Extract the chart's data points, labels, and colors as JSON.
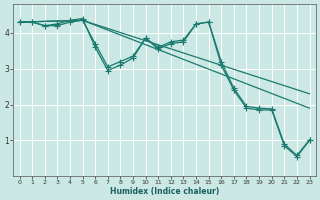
{
  "xlabel": "Humidex (Indice chaleur)",
  "bg_color": "#cce8e5",
  "line_color": "#1a7a6e",
  "grid_color": "#ffffff",
  "xlim": [
    -0.5,
    23.5
  ],
  "ylim": [
    0,
    4.8
  ],
  "yticks": [
    1,
    2,
    3,
    4
  ],
  "xticks": [
    0,
    1,
    2,
    3,
    4,
    5,
    6,
    7,
    8,
    9,
    10,
    11,
    12,
    13,
    14,
    15,
    16,
    17,
    18,
    19,
    20,
    21,
    22,
    23
  ],
  "series_wiggly1": {
    "x": [
      0,
      1,
      2,
      3,
      4,
      5,
      6,
      7,
      8,
      9,
      10,
      11,
      12,
      13,
      14,
      15,
      16,
      17,
      18,
      19,
      20,
      21,
      22,
      23
    ],
    "y": [
      4.3,
      4.3,
      4.2,
      4.25,
      4.35,
      4.4,
      3.6,
      2.95,
      3.1,
      3.3,
      3.85,
      3.55,
      3.7,
      3.75,
      4.25,
      4.3,
      3.1,
      2.4,
      1.9,
      1.85,
      1.85,
      0.85,
      0.55,
      1.0
    ]
  },
  "series_wiggly2": {
    "x": [
      0,
      1,
      2,
      3,
      4,
      5,
      6,
      7,
      8,
      9,
      10,
      11,
      12,
      13,
      14,
      15,
      16,
      17,
      18,
      19,
      20,
      21,
      22,
      23
    ],
    "y": [
      4.3,
      4.3,
      4.2,
      4.2,
      4.3,
      4.35,
      3.7,
      3.05,
      3.2,
      3.35,
      3.85,
      3.6,
      3.75,
      3.8,
      4.25,
      4.3,
      3.2,
      2.45,
      1.95,
      1.9,
      1.88,
      0.9,
      0.58,
      1.02
    ]
  },
  "series_diag1": {
    "x": [
      0,
      5,
      23
    ],
    "y": [
      4.3,
      4.35,
      1.9
    ]
  },
  "series_diag2": {
    "x": [
      0,
      5,
      23
    ],
    "y": [
      4.3,
      4.35,
      2.3
    ]
  }
}
